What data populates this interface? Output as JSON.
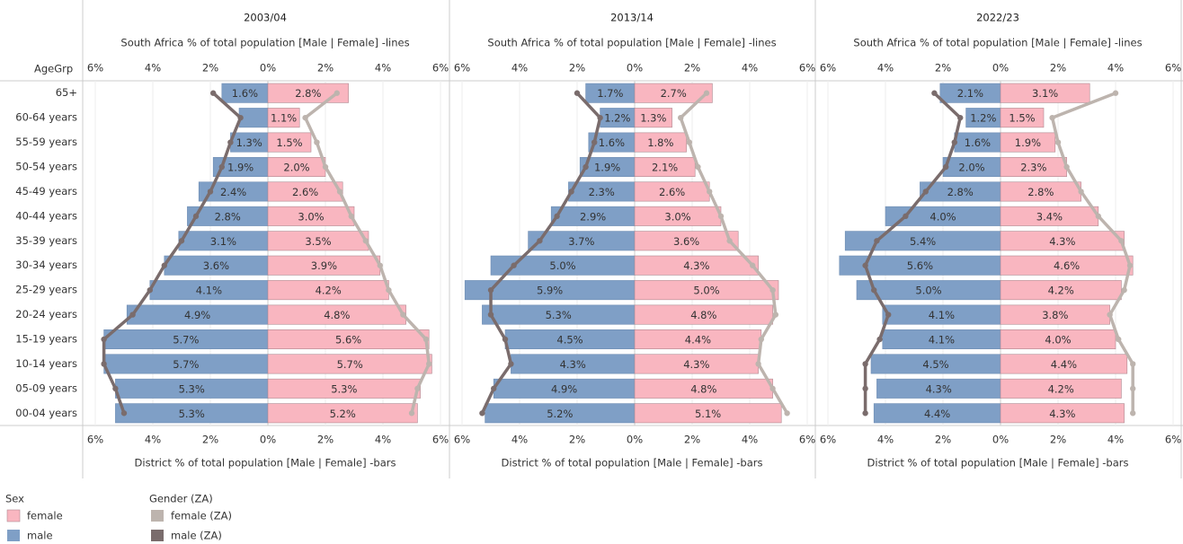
{
  "row_header": "AgeGrp",
  "legend_titles": [
    "Sex",
    "Gender (ZA)"
  ],
  "chart_data": [
    {
      "type": "pyramid",
      "title": "2003/04",
      "xlabel_top": "South Africa % of total population [Male | Female] -lines",
      "xlabel": "District % of total population [Male | Female] -bars",
      "categories": [
        "65+",
        "60-64 years",
        "55-59 years",
        "50-54 years",
        "45-49 years",
        "40-44 years",
        "35-39 years",
        "30-34 years",
        "25-29 years",
        "20-24 years",
        "15-19 years",
        "10-14 years",
        "05-09 years",
        "00-04 years"
      ],
      "xlim_male": [
        0,
        6.4
      ],
      "xlim_female": [
        0,
        6.3
      ],
      "xticks_male": [
        {
          "value": 6,
          "label": "6%"
        },
        {
          "value": 4,
          "label": "4%"
        },
        {
          "value": 2,
          "label": "2%"
        }
      ],
      "xticks_female": [
        {
          "value": 0,
          "label": "0%"
        },
        {
          "value": 2,
          "label": "2%"
        },
        {
          "value": 4,
          "label": "4%"
        },
        {
          "value": 6,
          "label": "6%"
        }
      ],
      "grid": true,
      "series": [
        {
          "name": "male",
          "mark": "bar",
          "side": "male",
          "color": "#7f9fc6",
          "values": [
            1.6,
            1.0,
            1.3,
            1.9,
            2.4,
            2.8,
            3.1,
            3.6,
            4.1,
            4.9,
            5.7,
            5.7,
            5.3,
            5.3
          ],
          "value_labels": [
            "1.6%",
            null,
            "1.3%",
            "1.9%",
            "2.4%",
            "2.8%",
            "3.1%",
            "3.6%",
            "4.1%",
            "4.9%",
            "5.7%",
            "5.7%",
            "5.3%",
            "5.3%"
          ]
        },
        {
          "name": "female",
          "mark": "bar",
          "side": "female",
          "color": "#f9b6c0",
          "values": [
            2.8,
            1.1,
            1.5,
            2.0,
            2.6,
            3.0,
            3.5,
            3.9,
            4.2,
            4.8,
            5.6,
            5.7,
            5.3,
            5.2
          ],
          "value_labels": [
            "2.8%",
            "1.1%",
            "1.5%",
            "2.0%",
            "2.6%",
            "3.0%",
            "3.5%",
            "3.9%",
            "4.2%",
            "4.8%",
            "5.6%",
            "5.7%",
            "5.3%",
            "5.2%"
          ]
        },
        {
          "name": "male (ZA)",
          "mark": "line",
          "side": "male",
          "color": "#7a6c6c",
          "values": [
            1.9,
            0.95,
            1.3,
            1.6,
            2.0,
            2.5,
            3.0,
            3.6,
            4.1,
            4.7,
            5.7,
            5.7,
            5.3,
            5.0
          ]
        },
        {
          "name": "female (ZA)",
          "mark": "line",
          "side": "female",
          "color": "#bdb4ae",
          "values": [
            2.4,
            1.3,
            1.7,
            2.0,
            2.5,
            2.9,
            3.4,
            3.9,
            4.2,
            4.7,
            5.5,
            5.6,
            5.2,
            5.0
          ]
        }
      ]
    },
    {
      "type": "pyramid",
      "title": "2013/14",
      "xlabel_top": "South Africa % of total population [Male | Female] -lines",
      "xlabel": "District % of total population [Male | Female] -bars",
      "xlim_male": [
        0,
        6.4
      ],
      "xlim_female": [
        0,
        6.3
      ],
      "xticks_male": [
        {
          "value": 6,
          "label": "6%"
        },
        {
          "value": 4,
          "label": "4%"
        },
        {
          "value": 2,
          "label": "2%"
        }
      ],
      "xticks_female": [
        {
          "value": 0,
          "label": "0%"
        },
        {
          "value": 2,
          "label": "2%"
        },
        {
          "value": 4,
          "label": "4%"
        },
        {
          "value": 6,
          "label": "6%"
        }
      ],
      "grid": true,
      "series": [
        {
          "mark": "bar",
          "side": "male",
          "color": "#7f9fc6",
          "values": [
            1.7,
            1.2,
            1.6,
            1.9,
            2.3,
            2.9,
            3.7,
            5.0,
            5.9,
            5.3,
            4.5,
            4.3,
            4.9,
            5.2
          ],
          "value_labels": [
            "1.7%",
            "1.2%",
            "1.6%",
            "1.9%",
            "2.3%",
            "2.9%",
            "3.7%",
            "5.0%",
            "5.9%",
            "5.3%",
            "4.5%",
            "4.3%",
            "4.9%",
            "5.2%"
          ]
        },
        {
          "mark": "bar",
          "side": "female",
          "color": "#f9b6c0",
          "values": [
            2.7,
            1.3,
            1.8,
            2.1,
            2.6,
            3.0,
            3.6,
            4.3,
            5.0,
            4.8,
            4.4,
            4.3,
            4.8,
            5.1
          ],
          "value_labels": [
            "2.7%",
            "1.3%",
            "1.8%",
            "2.1%",
            "2.6%",
            "3.0%",
            "3.6%",
            "4.3%",
            "5.0%",
            "4.8%",
            "4.4%",
            "4.3%",
            "4.8%",
            "5.1%"
          ]
        },
        {
          "mark": "line",
          "side": "male",
          "color": "#7a6c6c",
          "values": [
            2.0,
            1.2,
            1.4,
            1.7,
            2.2,
            2.7,
            3.3,
            4.2,
            5.0,
            5.0,
            4.5,
            4.3,
            4.9,
            5.3
          ]
        },
        {
          "mark": "line",
          "side": "female",
          "color": "#bdb4ae",
          "values": [
            2.5,
            1.6,
            1.9,
            2.2,
            2.6,
            3.0,
            3.3,
            4.1,
            4.8,
            4.9,
            4.4,
            4.3,
            4.8,
            5.3
          ]
        }
      ]
    },
    {
      "type": "pyramid",
      "title": "2022/23",
      "xlabel_top": "South Africa % of total population [Male | Female] -lines",
      "xlabel": "District % of total population [Male | Female] -bars",
      "xlim_male": [
        0,
        6.4
      ],
      "xlim_female": [
        0,
        6.3
      ],
      "xticks_male": [
        {
          "value": 6,
          "label": "6%"
        },
        {
          "value": 4,
          "label": "4%"
        },
        {
          "value": 2,
          "label": "2%"
        }
      ],
      "xticks_female": [
        {
          "value": 0,
          "label": "0%"
        },
        {
          "value": 2,
          "label": "2%"
        },
        {
          "value": 4,
          "label": "4%"
        },
        {
          "value": 6,
          "label": "6%"
        }
      ],
      "grid": true,
      "series": [
        {
          "mark": "bar",
          "side": "male",
          "color": "#7f9fc6",
          "values": [
            2.1,
            1.2,
            1.6,
            2.0,
            2.8,
            4.0,
            5.4,
            5.6,
            5.0,
            4.1,
            4.1,
            4.5,
            4.3,
            4.4
          ],
          "value_labels": [
            "2.1%",
            "1.2%",
            "1.6%",
            "2.0%",
            "2.8%",
            "4.0%",
            "5.4%",
            "5.6%",
            "5.0%",
            "4.1%",
            "4.1%",
            "4.5%",
            "4.3%",
            "4.4%"
          ]
        },
        {
          "mark": "bar",
          "side": "female",
          "color": "#f9b6c0",
          "values": [
            3.1,
            1.5,
            1.9,
            2.3,
            2.8,
            3.4,
            4.3,
            4.6,
            4.2,
            3.8,
            4.0,
            4.4,
            4.2,
            4.3
          ],
          "value_labels": [
            "3.1%",
            "1.5%",
            "1.9%",
            "2.3%",
            "2.8%",
            "3.4%",
            "4.3%",
            "4.6%",
            "4.2%",
            "3.8%",
            "4.0%",
            "4.4%",
            "4.2%",
            "4.3%"
          ]
        },
        {
          "mark": "line",
          "side": "male",
          "color": "#7a6c6c",
          "values": [
            2.3,
            1.4,
            1.6,
            1.9,
            2.6,
            3.3,
            4.3,
            4.7,
            4.4,
            3.9,
            4.2,
            4.7,
            4.7,
            4.7
          ]
        },
        {
          "mark": "line",
          "side": "female",
          "color": "#bdb4ae",
          "values": [
            4.0,
            1.8,
            2.0,
            2.3,
            2.8,
            3.4,
            4.2,
            4.5,
            4.3,
            3.8,
            4.1,
            4.6,
            4.6,
            4.6
          ]
        }
      ]
    }
  ]
}
